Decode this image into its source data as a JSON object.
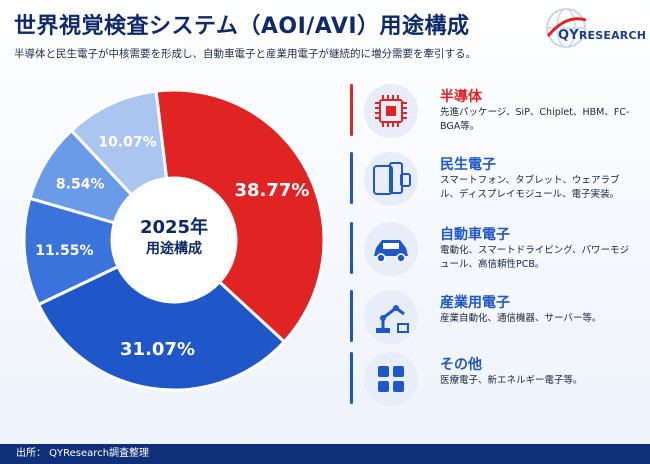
{
  "header": {
    "title": "世界視覚検査システム（AOI/AVI）用途構成",
    "subtitle": "半導体と民生電子が中核需要を形成し、自動車電子と産業用電子が継続的に増分需要を牽引する。"
  },
  "logo": {
    "text_big": "QY",
    "text_rest": "RESEARCH"
  },
  "center": {
    "year": "2025年",
    "label": "用途構成"
  },
  "colors": {
    "red": "#e02424",
    "blue_dark": "#1f57c9",
    "blue_mid": "#3a73db",
    "blue_light": "#6a9be8",
    "blue_pale": "#aac6f0",
    "navy": "#0d2a66"
  },
  "chart_data": {
    "type": "pie",
    "categories": [
      "半導体",
      "民生電子",
      "自動車電子",
      "産業用電子",
      "その他"
    ],
    "values": [
      38.77,
      31.07,
      11.55,
      8.54,
      10.07
    ],
    "data_labels": [
      "38.77%",
      "31.07%",
      "11.55%",
      "8.54%",
      "10.07%"
    ],
    "colors": [
      "#e02424",
      "#1f57c9",
      "#3a73db",
      "#6a9be8",
      "#aac6f0"
    ],
    "title": "",
    "donut": true
  },
  "legend": [
    {
      "title": "半導体",
      "desc": "先進パッケージ、SiP、Chiplet、HBM、FC-BGA等。",
      "icon": "chip-icon",
      "color": "#e02424",
      "icon_color": "#e02424"
    },
    {
      "title": "民生電子",
      "desc": "スマートフォン、タブレット、ウェアラブル、ディスプレイモジュール、電子実装。",
      "icon": "devices-icon",
      "color": "#1f57c9",
      "icon_color": "#1f57c9"
    },
    {
      "title": "自動車電子",
      "desc": "電動化、スマートドライビング、パワーモジュール、高信頼性PCB。",
      "icon": "car-icon",
      "color": "#1f57c9",
      "icon_color": "#1f57c9"
    },
    {
      "title": "産業用電子",
      "desc": "産業自動化、通信機器、サーバー等。",
      "icon": "robot-arm-icon",
      "color": "#1f57c9",
      "icon_color": "#1f57c9"
    },
    {
      "title": "その他",
      "desc": "医療電子、新エネルギー電子等。",
      "icon": "grid-icon",
      "color": "#1f57c9",
      "icon_color": "#1f57c9"
    }
  ],
  "footer": {
    "source": "出所： QYResearch調査整理"
  }
}
